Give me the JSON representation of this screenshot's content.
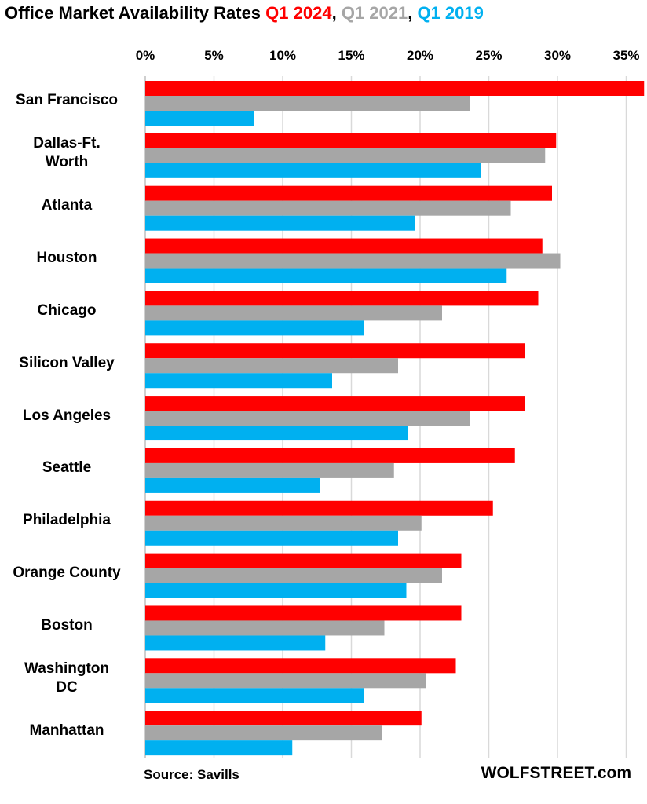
{
  "chart_data": {
    "type": "bar",
    "orientation": "horizontal",
    "title": {
      "prefix": "Office Market Availability Rates ",
      "parts": [
        {
          "text": "Q1 2024",
          "color": "#ff0000"
        },
        {
          "text": ", ",
          "color": "#000000"
        },
        {
          "text": "Q1 2021",
          "color": "#a6a6a6"
        },
        {
          "text": ", ",
          "color": "#000000"
        },
        {
          "text": "Q1 2019",
          "color": "#00b0f0"
        }
      ]
    },
    "categories": [
      "San Francisco",
      "Dallas-Ft.\nWorth",
      "Atlanta",
      "Houston",
      "Chicago",
      "Silicon Valley",
      "Los Angeles",
      "Seattle",
      "Philadelphia",
      "Orange County",
      "Boston",
      "Washington\nDC",
      "Manhattan"
    ],
    "series": [
      {
        "name": "Q1 2024",
        "color": "#ff0000",
        "values": [
          36.3,
          29.9,
          29.6,
          28.9,
          28.6,
          27.6,
          27.6,
          26.9,
          25.3,
          23.0,
          23.0,
          22.6,
          20.1
        ]
      },
      {
        "name": "Q1 2021",
        "color": "#a6a6a6",
        "values": [
          23.6,
          29.1,
          26.6,
          30.2,
          21.6,
          18.4,
          23.6,
          18.1,
          20.1,
          21.6,
          17.4,
          20.4,
          17.2
        ]
      },
      {
        "name": "Q1 2019",
        "color": "#00b0f0",
        "values": [
          7.9,
          24.4,
          19.6,
          26.3,
          15.9,
          13.6,
          19.1,
          12.7,
          18.4,
          19.0,
          13.1,
          15.9,
          10.7
        ]
      }
    ],
    "xlim": [
      0,
      36.4
    ],
    "xticks": [
      "0%",
      "5%",
      "10%",
      "15%",
      "20%",
      "25%",
      "30%",
      "35%"
    ],
    "xtick_values": [
      0,
      5,
      10,
      15,
      20,
      25,
      30,
      35
    ],
    "axis_position": "top",
    "grid": true,
    "source": "Source: Savills",
    "brand": "WOLFSTREET.com"
  }
}
